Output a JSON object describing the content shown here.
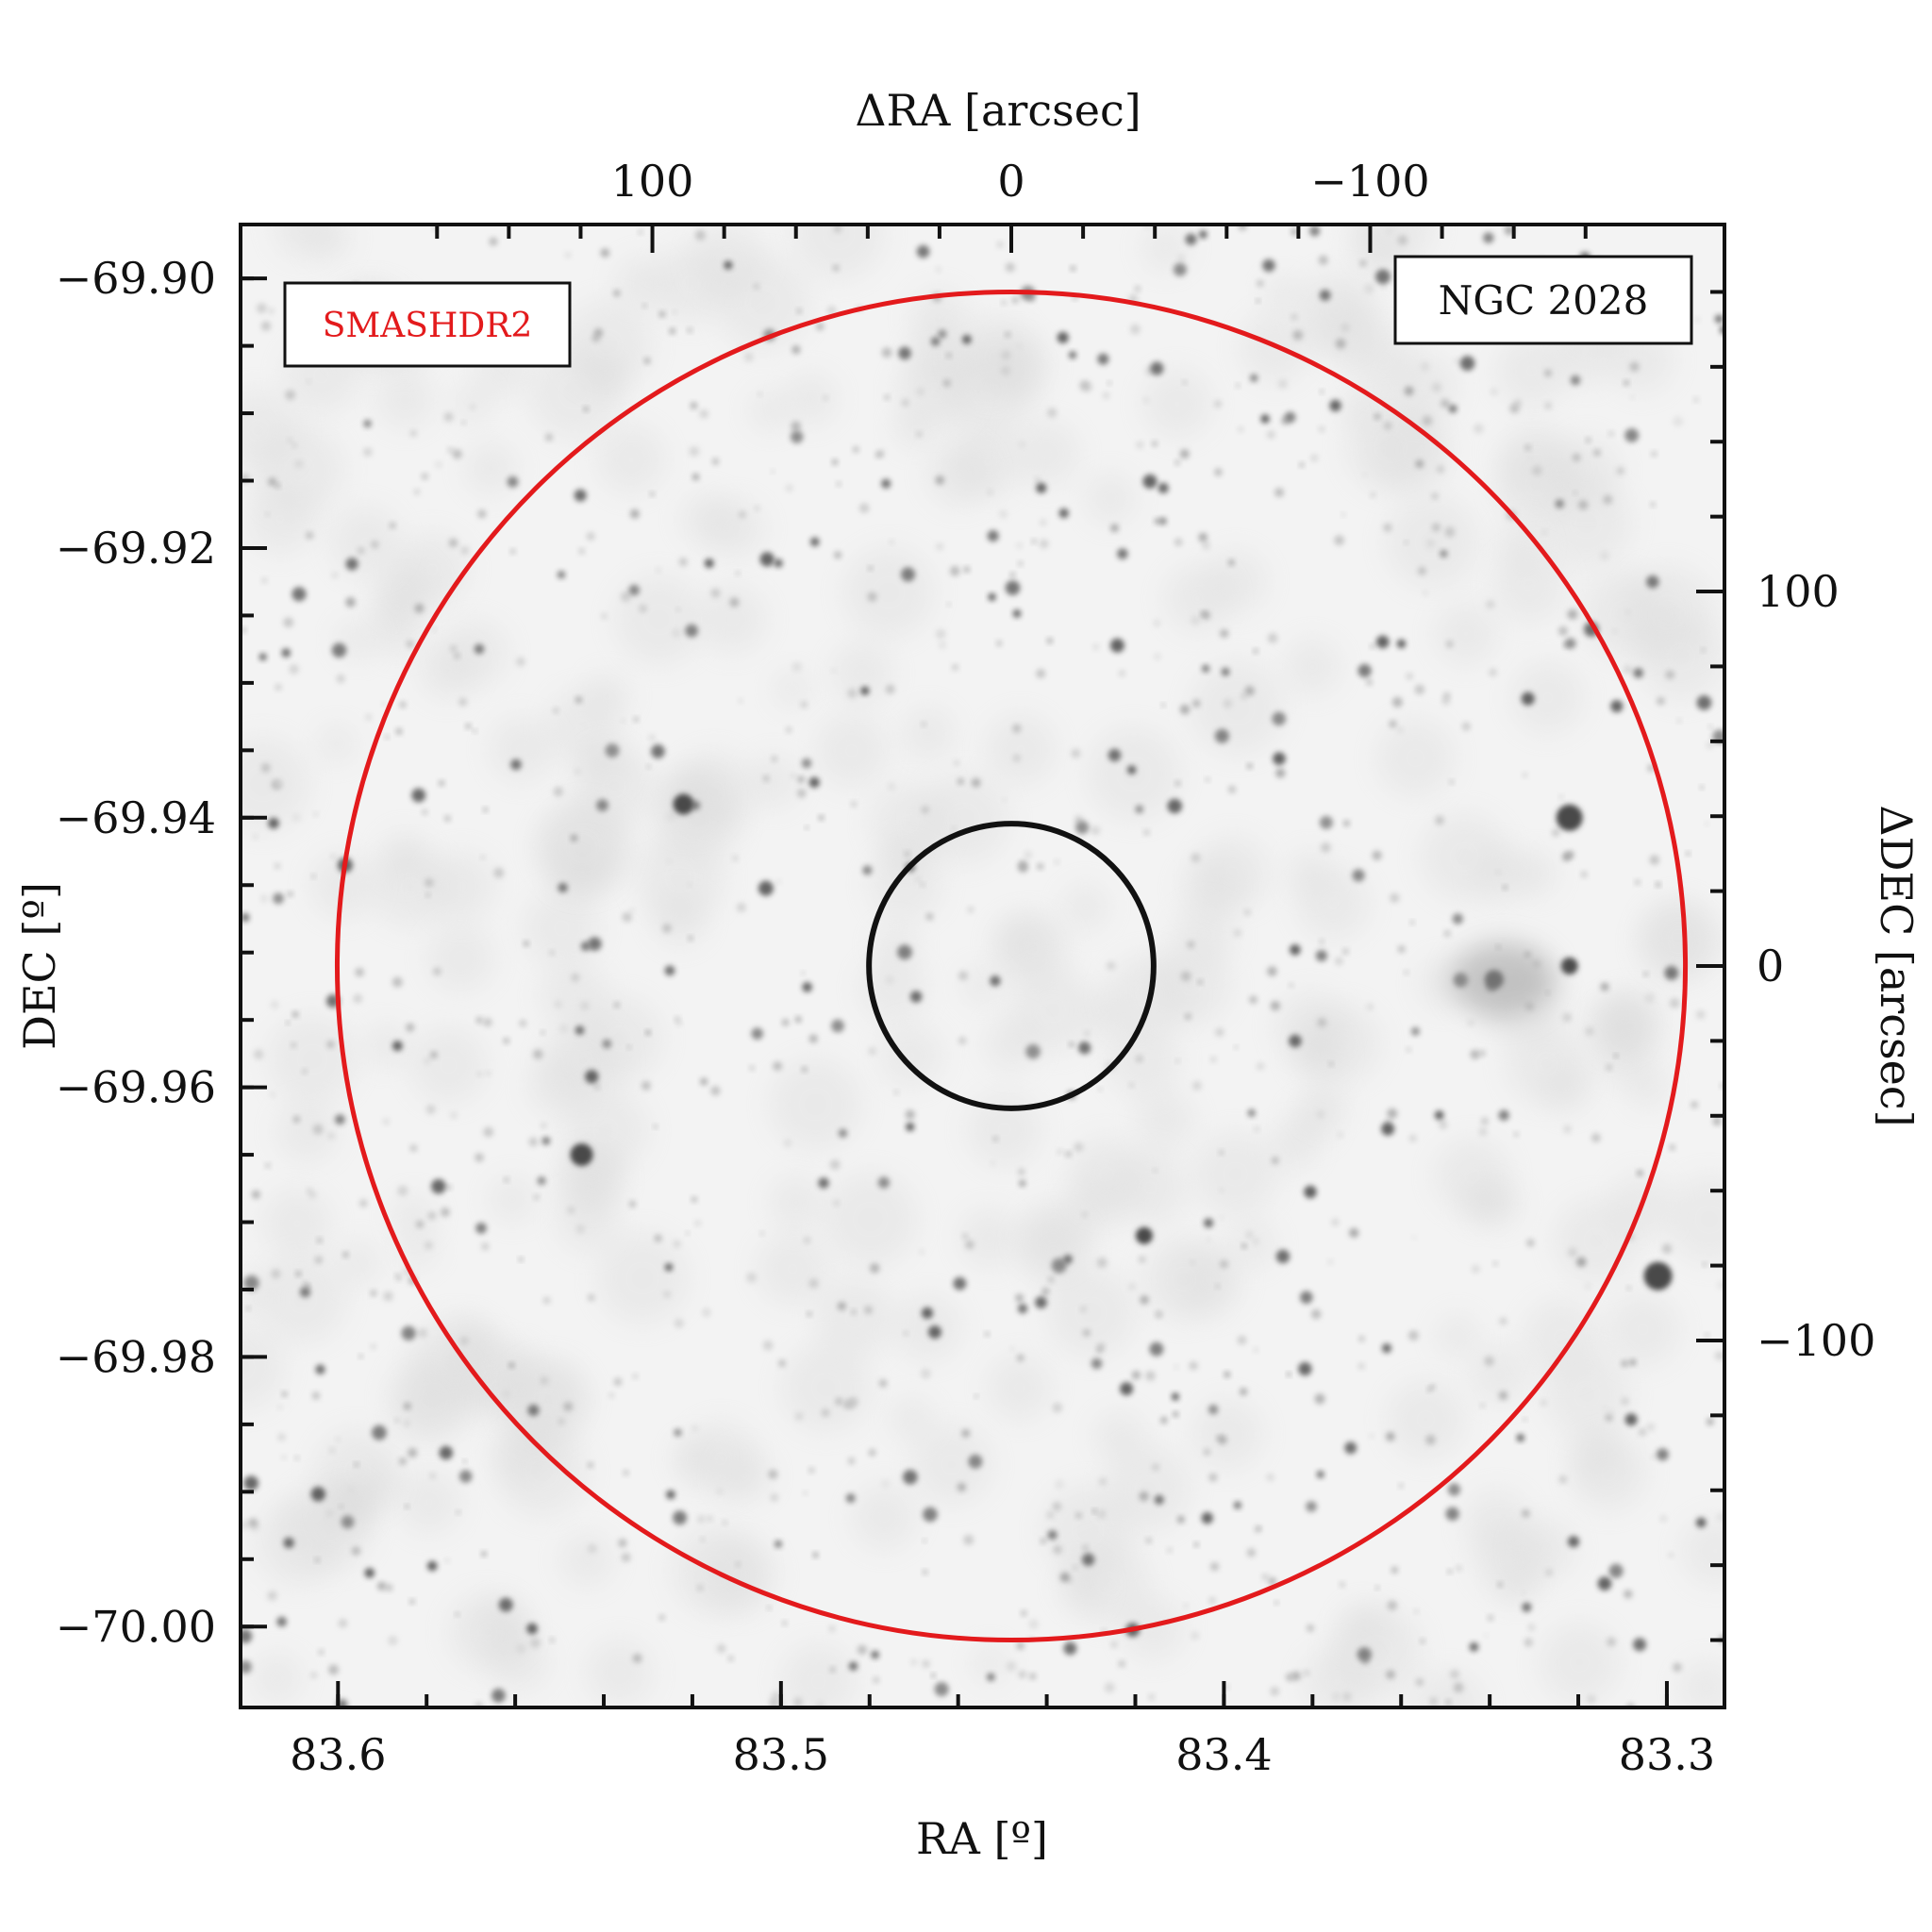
{
  "chart_data": {
    "type": "scatter",
    "image_kind": "inverted greyscale sky image (stars dark on white)",
    "xlabel": "RA [º]",
    "ylabel": "DEC [º]",
    "top_xlabel": "ΔRA [arcsec]",
    "right_ylabel": "ΔDEC [arcsec]",
    "xlim": [
      83.622,
      83.287
    ],
    "ylim": [
      -70.006,
      -69.896
    ],
    "x_ticks": [
      {
        "value": 83.6,
        "label": "83.6"
      },
      {
        "value": 83.5,
        "label": "83.5"
      },
      {
        "value": 83.4,
        "label": "83.4"
      },
      {
        "value": 83.3,
        "label": "83.3"
      }
    ],
    "y_ticks": [
      {
        "value": -69.9,
        "label": "−69.90"
      },
      {
        "value": -69.92,
        "label": "−69.92"
      },
      {
        "value": -69.94,
        "label": "−69.94"
      },
      {
        "value": -69.96,
        "label": "−69.96"
      },
      {
        "value": -69.98,
        "label": "−69.98"
      },
      {
        "value": -70.0,
        "label": "−70.00"
      }
    ],
    "top_ticks": [
      {
        "value": 100,
        "label": "100"
      },
      {
        "value": 0,
        "label": "0"
      },
      {
        "value": -100,
        "label": "−100"
      }
    ],
    "right_ticks": [
      {
        "value": 100,
        "label": "100"
      },
      {
        "value": 0,
        "label": "0"
      },
      {
        "value": -100,
        "label": "−100"
      }
    ],
    "center": {
      "ra": 83.448,
      "dec": -69.951
    },
    "cluster_radius_arcsec": 180,
    "core_radius_arcsec": 10,
    "cluster_circle_color": "#e31a1c",
    "core_circle_color": "#111111",
    "survey_label": "SMASHDR2",
    "survey_label_color": "#e31a1c",
    "cluster_name": "NGC 2028",
    "grid": false
  }
}
